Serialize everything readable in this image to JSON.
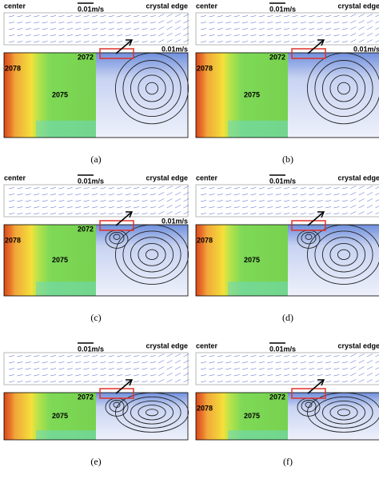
{
  "panels": [
    {
      "caption": "(a)",
      "header": {
        "left": "center",
        "scale": "0.01m/s",
        "right": "crystal edge"
      },
      "inset_scale": "0.01m/s",
      "contours": [
        "2078",
        "2072",
        "2075"
      ]
    },
    {
      "caption": "(b)",
      "header": {
        "left": "center",
        "scale": "0.01m/s",
        "right": "crystal edge"
      },
      "inset_scale": "0.01m/s",
      "contours": [
        "2078",
        "2072",
        "2075"
      ]
    },
    {
      "caption": "(c)",
      "header": {
        "left": "center",
        "scale": "0.01m/s",
        "right": "crystal edge"
      },
      "inset_scale": "0.01m/s",
      "contours": [
        "2078",
        "2072",
        "2075"
      ]
    },
    {
      "caption": "(d)",
      "header": {
        "left": "center",
        "scale": "0.01m/s",
        "right": "crystal edge"
      },
      "contours": [
        "2078",
        "2075"
      ]
    },
    {
      "caption": "(e)",
      "header": {
        "scale": "0.01m/s",
        "right": "crystal edge"
      },
      "contours": [
        "2072",
        "2075"
      ]
    },
    {
      "caption": "(f)",
      "header": {
        "left": "center",
        "scale": "0.01m/s",
        "right": "crystal edge"
      },
      "contours": [
        "2078",
        "2072",
        "2075"
      ]
    }
  ]
}
